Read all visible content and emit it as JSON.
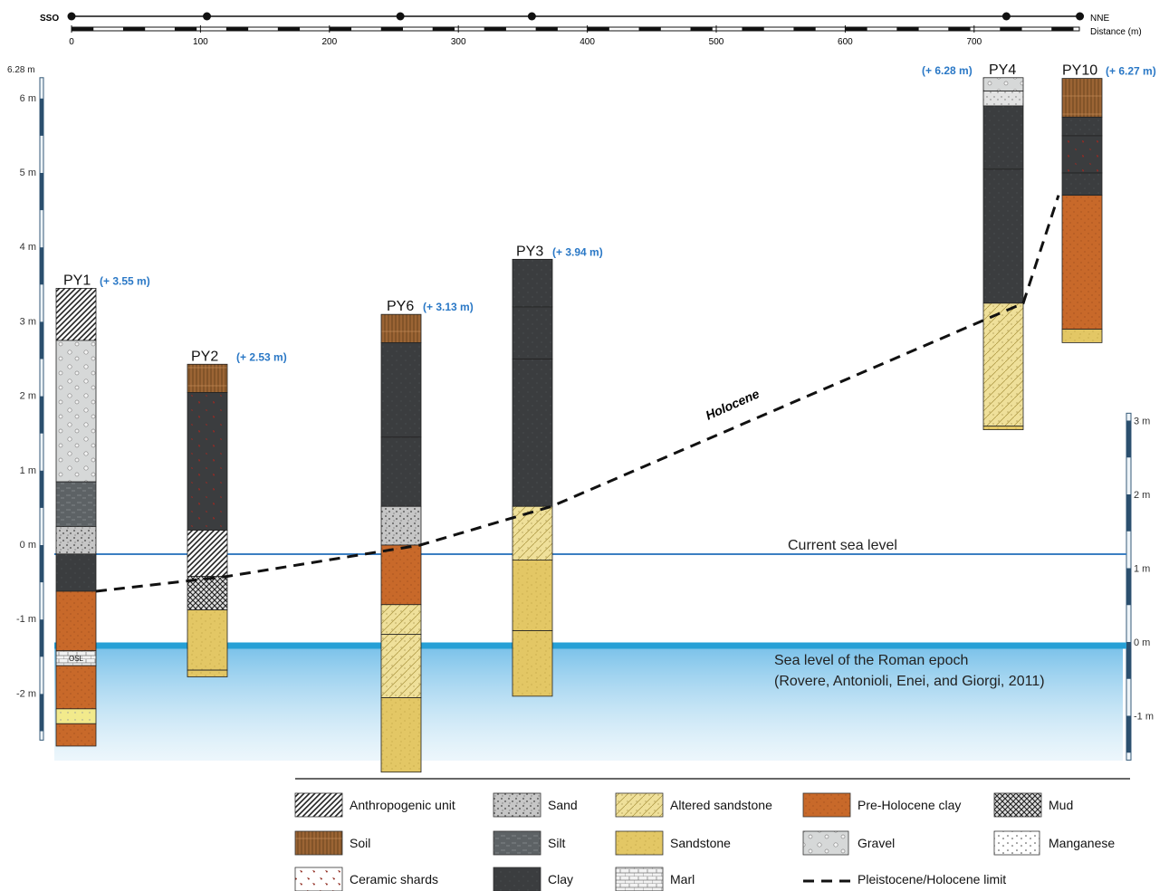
{
  "top_axis": {
    "left_label": "SSO",
    "right_label": "NNE",
    "unit_label": "Distance (m)",
    "ticks": [
      "0",
      "100",
      "200",
      "300",
      "400",
      "500",
      "600",
      "700"
    ],
    "core_markers_m": [
      0,
      105,
      255,
      357,
      725,
      782
    ]
  },
  "left_scale": {
    "top_label": "6.28 m",
    "labels": [
      "6 m",
      "5 m",
      "4 m",
      "3 m",
      "2 m",
      "1 m",
      "0 m",
      "-1 m",
      "-2 m"
    ]
  },
  "right_scale": {
    "labels": [
      "3 m",
      "2 m",
      "1 m",
      "0 m",
      "-1 m"
    ]
  },
  "cores": [
    {
      "id": "PY1",
      "elevation": "(+ 3.55 m)",
      "units": [
        {
          "type": "anthropogenic",
          "top_m": 3.45,
          "bottom_m": 2.75
        },
        {
          "type": "gravel",
          "top_m": 2.75,
          "bottom_m": 0.85
        },
        {
          "type": "silt",
          "top_m": 0.85,
          "bottom_m": 0.25
        },
        {
          "type": "sand",
          "top_m": 0.25,
          "bottom_m": -0.12
        },
        {
          "type": "clay",
          "top_m": -0.12,
          "bottom_m": -0.62
        },
        {
          "type": "pre_holocene_clay",
          "top_m": -0.62,
          "bottom_m": -1.42
        },
        {
          "type": "marl",
          "top_m": -1.42,
          "bottom_m": -1.62,
          "label": "OSL"
        },
        {
          "type": "pre_holocene_clay",
          "top_m": -1.62,
          "bottom_m": -2.2
        },
        {
          "type": "sandstone_light",
          "top_m": -2.2,
          "bottom_m": -2.4
        },
        {
          "type": "pre_holocene_clay",
          "top_m": -2.4,
          "bottom_m": -2.7
        }
      ]
    },
    {
      "id": "PY2",
      "elevation": "(+ 2.53 m)",
      "units": [
        {
          "type": "soil",
          "top_m": 2.43,
          "bottom_m": 2.05
        },
        {
          "type": "ceramic_clay",
          "top_m": 2.05,
          "bottom_m": 0.2
        },
        {
          "type": "anthropogenic",
          "top_m": 0.2,
          "bottom_m": -0.42
        },
        {
          "type": "mud",
          "top_m": -0.42,
          "bottom_m": -0.87
        },
        {
          "type": "sandstone",
          "top_m": -0.87,
          "bottom_m": -1.68
        },
        {
          "type": "sandstone",
          "top_m": -1.68,
          "bottom_m": -1.77
        }
      ]
    },
    {
      "id": "PY6",
      "elevation": "(+ 3.13 m)",
      "units": [
        {
          "type": "soil",
          "top_m": 3.1,
          "bottom_m": 2.72
        },
        {
          "type": "clay",
          "top_m": 2.72,
          "bottom_m": 1.45
        },
        {
          "type": "clay",
          "top_m": 1.45,
          "bottom_m": 0.52
        },
        {
          "type": "sand",
          "top_m": 0.52,
          "bottom_m": 0.0
        },
        {
          "type": "pre_holocene_clay",
          "top_m": 0.0,
          "bottom_m": -0.8
        },
        {
          "type": "altered_sandstone",
          "top_m": -0.8,
          "bottom_m": -1.2
        },
        {
          "type": "altered_sandstone",
          "top_m": -1.2,
          "bottom_m": -2.05
        },
        {
          "type": "sandstone",
          "top_m": -2.05,
          "bottom_m": -3.05
        }
      ]
    },
    {
      "id": "PY3",
      "elevation": "(+ 3.94 m)",
      "units": [
        {
          "type": "clay",
          "top_m": 3.84,
          "bottom_m": 3.2
        },
        {
          "type": "clay",
          "top_m": 3.2,
          "bottom_m": 2.5
        },
        {
          "type": "clay",
          "top_m": 2.5,
          "bottom_m": 0.52
        },
        {
          "type": "altered_sandstone",
          "top_m": 0.52,
          "bottom_m": -0.2
        },
        {
          "type": "sandstone",
          "top_m": -0.2,
          "bottom_m": -1.15
        },
        {
          "type": "sandstone",
          "top_m": -1.15,
          "bottom_m": -2.03
        }
      ]
    },
    {
      "id": "PY4",
      "elevation": "(+ 6.28 m)",
      "units": [
        {
          "type": "gravel",
          "top_m": 6.28,
          "bottom_m": 6.1
        },
        {
          "type": "sand_light",
          "top_m": 6.1,
          "bottom_m": 5.9
        },
        {
          "type": "clay",
          "top_m": 5.9,
          "bottom_m": 5.05
        },
        {
          "type": "clay",
          "top_m": 5.05,
          "bottom_m": 3.25
        },
        {
          "type": "altered_sandstone",
          "top_m": 3.25,
          "bottom_m": 1.6
        },
        {
          "type": "sandstone",
          "top_m": 1.6,
          "bottom_m": 1.55
        }
      ]
    },
    {
      "id": "PY10",
      "elevation": "(+ 6.27 m)",
      "units": [
        {
          "type": "soil",
          "top_m": 6.27,
          "bottom_m": 5.75
        },
        {
          "type": "clay",
          "top_m": 5.75,
          "bottom_m": 5.5
        },
        {
          "type": "ceramic_clay",
          "top_m": 5.5,
          "bottom_m": 5.0
        },
        {
          "type": "clay",
          "top_m": 5.0,
          "bottom_m": 4.7
        },
        {
          "type": "pre_holocene_clay",
          "top_m": 4.7,
          "bottom_m": 2.9
        },
        {
          "type": "sandstone",
          "top_m": 2.9,
          "bottom_m": 2.72
        }
      ]
    }
  ],
  "annotations": {
    "holocene": "Holocene",
    "current_sea_level": "Current sea level",
    "roman_sea_level_line1": "Sea level of the Roman epoch",
    "roman_sea_level_line2": "(Rovere, Antonioli, Enei, and Giorgi, 2011)"
  },
  "limit_line_elevations_m": [
    -0.62,
    -0.42,
    0.0,
    0.52,
    3.25,
    4.7
  ],
  "legend": [
    {
      "key": "anthropogenic",
      "label": "Anthropogenic unit"
    },
    {
      "key": "sand",
      "label": "Sand"
    },
    {
      "key": "altered_sandstone",
      "label": "Altered sandstone"
    },
    {
      "key": "pre_holocene_clay",
      "label": "Pre-Holocene clay"
    },
    {
      "key": "mud",
      "label": "Mud"
    },
    {
      "key": "soil",
      "label": "Soil"
    },
    {
      "key": "silt",
      "label": "Silt"
    },
    {
      "key": "sandstone",
      "label": "Sandstone"
    },
    {
      "key": "gravel",
      "label": "Gravel"
    },
    {
      "key": "manganese",
      "label": "Manganese"
    },
    {
      "key": "ceramic",
      "label": "Ceramic shards"
    },
    {
      "key": "clay",
      "label": "Clay"
    },
    {
      "key": "marl",
      "label": "Marl"
    },
    {
      "key": "limit",
      "label": "Pleistocene/Holocene limit"
    }
  ],
  "colors": {
    "clay": "#3b3d3f",
    "pre_holocene_clay": "#c8692a",
    "sandstone": "#e3c765",
    "altered_sandstone": "#efe09a",
    "soil": "#9b6434",
    "gravel": "#d6d8d8",
    "sand": "#c6c6c6",
    "silt": "#5d6265",
    "current_sea": "#3c7fc2",
    "roman_sea": "#27a0d6",
    "blue_text": "#2a78c6"
  }
}
